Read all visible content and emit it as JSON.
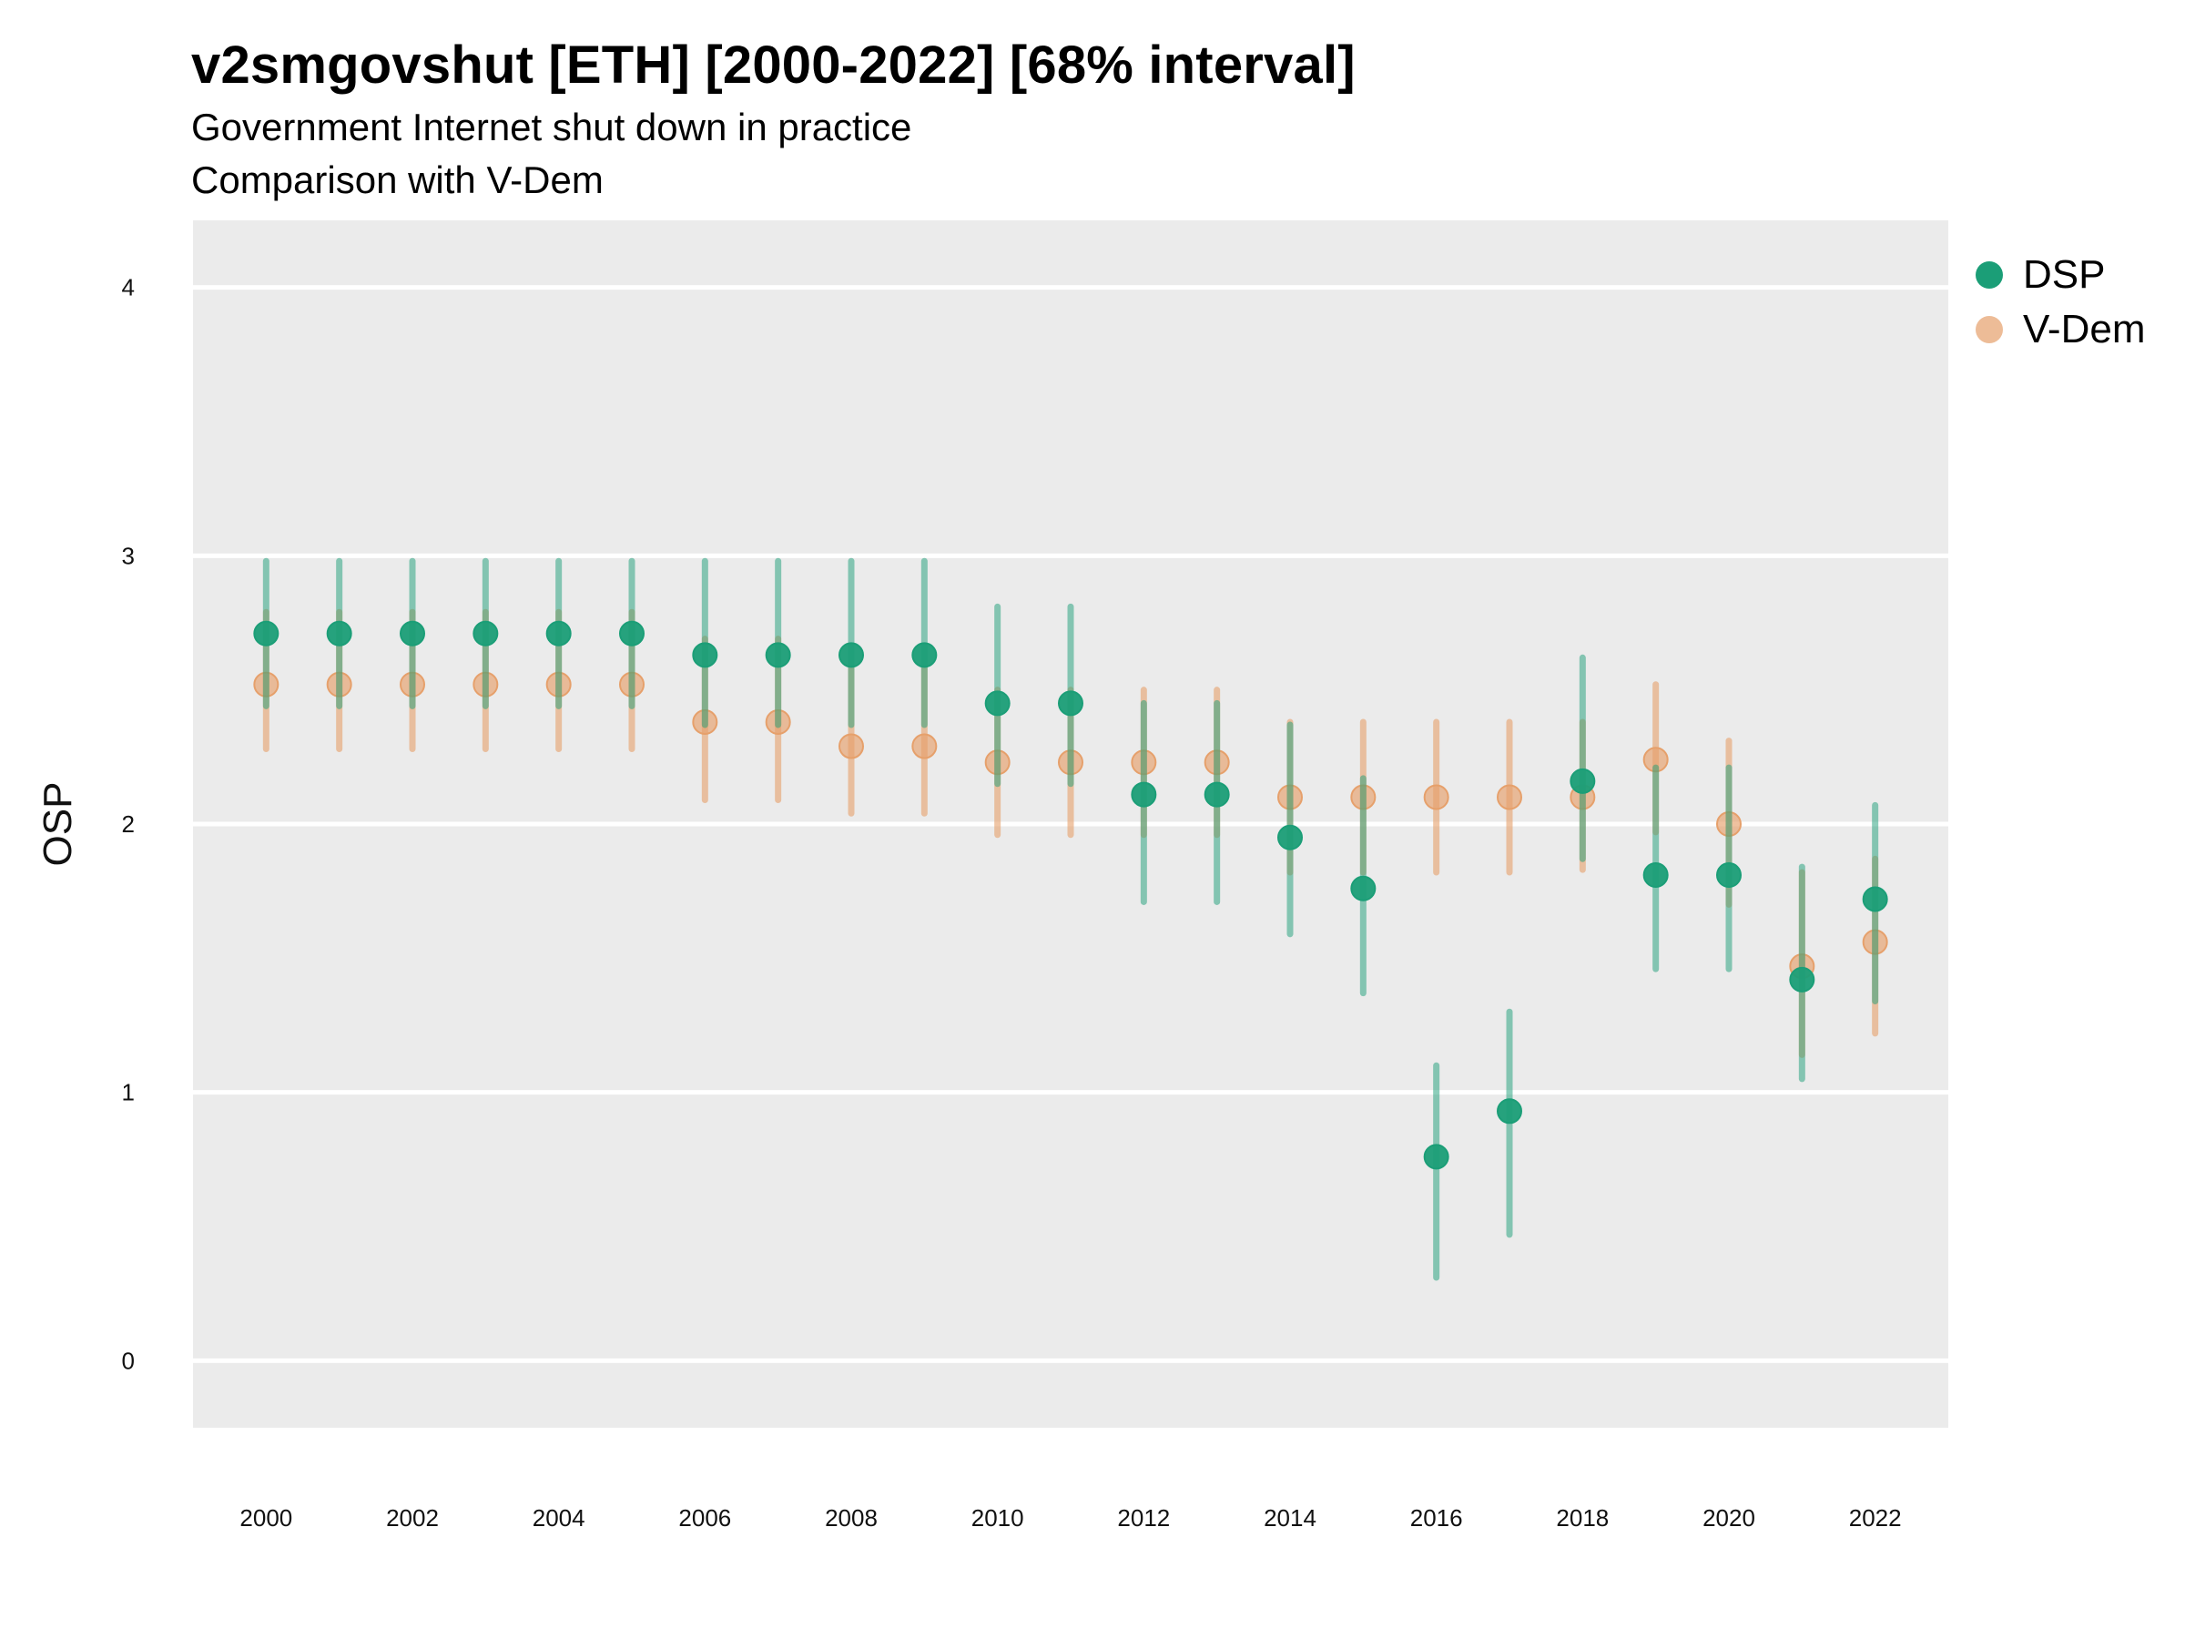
{
  "chart_data": {
    "type": "scatter",
    "title": "v2smgovshut [ETH] [2000-2022] [68% interval]",
    "subtitle": [
      "Government Internet shut down in practice",
      "Comparison with V-Dem"
    ],
    "xlabel": "",
    "ylabel": "OSP",
    "xlim": [
      1999,
      2023
    ],
    "ylim": [
      -0.25,
      4.25
    ],
    "yticks": [
      0,
      1,
      2,
      3,
      4
    ],
    "xticks": [
      2000,
      2002,
      2004,
      2006,
      2008,
      2010,
      2012,
      2014,
      2016,
      2018,
      2020,
      2022
    ],
    "grid": true,
    "legend_position": "right",
    "series": [
      {
        "name": "DSP",
        "color": "#1b9e77",
        "x": [
          2000,
          2001,
          2002,
          2003,
          2004,
          2005,
          2006,
          2007,
          2008,
          2009,
          2010,
          2011,
          2012,
          2013,
          2014,
          2015,
          2016,
          2017,
          2018,
          2019,
          2020,
          2021,
          2022
        ],
        "y": [
          2.71,
          2.71,
          2.71,
          2.71,
          2.71,
          2.71,
          2.63,
          2.63,
          2.63,
          2.63,
          2.45,
          2.45,
          2.11,
          2.11,
          1.95,
          1.76,
          0.76,
          0.93,
          2.16,
          1.81,
          1.81,
          1.42,
          1.72
        ],
        "low": [
          2.44,
          2.44,
          2.44,
          2.44,
          2.44,
          2.44,
          2.37,
          2.37,
          2.37,
          2.37,
          2.15,
          2.15,
          1.71,
          1.71,
          1.59,
          1.37,
          0.31,
          0.47,
          1.87,
          1.46,
          1.46,
          1.05,
          1.34
        ],
        "high": [
          2.98,
          2.98,
          2.98,
          2.98,
          2.98,
          2.98,
          2.98,
          2.98,
          2.98,
          2.98,
          2.81,
          2.81,
          2.45,
          2.45,
          2.37,
          2.17,
          1.1,
          1.3,
          2.62,
          2.21,
          2.21,
          1.84,
          2.07
        ]
      },
      {
        "name": "V-Dem",
        "color": "#e6a06b",
        "x": [
          2000,
          2001,
          2002,
          2003,
          2004,
          2005,
          2006,
          2007,
          2008,
          2009,
          2010,
          2011,
          2012,
          2013,
          2014,
          2015,
          2016,
          2017,
          2018,
          2019,
          2020,
          2021,
          2022
        ],
        "y": [
          2.52,
          2.52,
          2.52,
          2.52,
          2.52,
          2.52,
          2.38,
          2.38,
          2.29,
          2.29,
          2.23,
          2.23,
          2.23,
          2.23,
          2.1,
          2.1,
          2.1,
          2.1,
          2.1,
          2.24,
          2.0,
          1.47,
          1.56
        ],
        "low": [
          2.28,
          2.28,
          2.28,
          2.28,
          2.28,
          2.28,
          2.09,
          2.09,
          2.04,
          2.04,
          1.96,
          1.96,
          1.96,
          1.96,
          1.82,
          1.82,
          1.82,
          1.82,
          1.83,
          1.97,
          1.7,
          1.14,
          1.22
        ],
        "high": [
          2.79,
          2.79,
          2.79,
          2.79,
          2.79,
          2.79,
          2.69,
          2.69,
          2.58,
          2.58,
          2.5,
          2.5,
          2.5,
          2.5,
          2.38,
          2.38,
          2.38,
          2.38,
          2.38,
          2.52,
          2.31,
          1.82,
          1.87
        ]
      }
    ]
  }
}
